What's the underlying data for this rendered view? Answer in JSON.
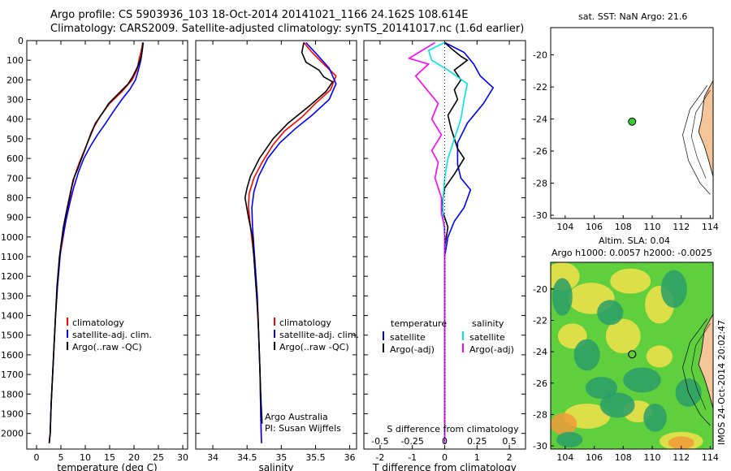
{
  "header": {
    "line1": "Argo profile: CS 5903936_103 18-Oct-2014 20141021_1166 24.162S 108.614E",
    "line2": "Climatology: CARS2009. Satellite-adjusted climatology: synTS_20141017.nc (1.6d earlier)"
  },
  "chart_data": [
    {
      "id": "temperature",
      "type": "line",
      "xlabel": "temperature (deg C)",
      "ylabel": "",
      "xlim": [
        -2,
        31
      ],
      "ylim": [
        2080,
        0
      ],
      "x_ticks": [
        0,
        5,
        10,
        15,
        20,
        25,
        30
      ],
      "y_ticks": [
        0,
        100,
        200,
        300,
        400,
        500,
        600,
        700,
        800,
        900,
        1000,
        1100,
        1200,
        1300,
        1400,
        1500,
        1600,
        1700,
        1800,
        1900,
        2000
      ],
      "legend": {
        "position": "lower-center",
        "entries": [
          "climatology",
          "satellite-adj. clim.",
          "Argo(..raw -QC)"
        ]
      },
      "series": [
        {
          "name": "climatology",
          "color": "#ff0000",
          "points": [
            [
              21.8,
              10
            ],
            [
              21.5,
              50
            ],
            [
              21,
              100
            ],
            [
              20.6,
              150
            ],
            [
              19.6,
              200
            ],
            [
              17.5,
              260
            ],
            [
              15,
              320
            ],
            [
              13.2,
              380
            ],
            [
              11.8,
              440
            ],
            [
              10.8,
              500
            ],
            [
              9.8,
              560
            ],
            [
              8.8,
              620
            ],
            [
              7.8,
              690
            ],
            [
              7.2,
              750
            ],
            [
              6.5,
              850
            ],
            [
              5.8,
              950
            ],
            [
              4.8,
              1100
            ],
            [
              4.3,
              1250
            ],
            [
              3.9,
              1400
            ],
            [
              3.6,
              1550
            ],
            [
              3.3,
              1700
            ],
            [
              3,
              1850
            ],
            [
              2.8,
              2000
            ],
            [
              2.6,
              2050
            ]
          ]
        },
        {
          "name": "satellite-adj. clim.",
          "color": "#0000ff",
          "points": [
            [
              21.9,
              10
            ],
            [
              21.7,
              50
            ],
            [
              21.4,
              100
            ],
            [
              20.9,
              150
            ],
            [
              20.3,
              200
            ],
            [
              19.1,
              250
            ],
            [
              17.5,
              300
            ],
            [
              15.8,
              360
            ],
            [
              14.2,
              420
            ],
            [
              12.5,
              480
            ],
            [
              11,
              540
            ],
            [
              9.7,
              600
            ],
            [
              8.6,
              670
            ],
            [
              7.6,
              750
            ],
            [
              6.9,
              820
            ],
            [
              6,
              920
            ],
            [
              5,
              1050
            ],
            [
              4.3,
              1250
            ],
            [
              3.9,
              1400
            ],
            [
              3.6,
              1550
            ],
            [
              3.3,
              1700
            ],
            [
              3,
              1850
            ],
            [
              2.8,
              2000
            ],
            [
              2.6,
              2050
            ]
          ]
        },
        {
          "name": "Argo(..raw -QC)",
          "color": "#000000",
          "points": [
            [
              21.8,
              10
            ],
            [
              21.7,
              40
            ],
            [
              21.5,
              80
            ],
            [
              20.8,
              130
            ],
            [
              19.8,
              180
            ],
            [
              18.8,
              220
            ],
            [
              16.8,
              270
            ],
            [
              14.8,
              320
            ],
            [
              13.5,
              370
            ],
            [
              12.1,
              420
            ],
            [
              11.2,
              470
            ],
            [
              10.3,
              530
            ],
            [
              9.4,
              590
            ],
            [
              8.5,
              650
            ],
            [
              7.5,
              710
            ],
            [
              6.9,
              780
            ],
            [
              6.3,
              850
            ],
            [
              5.5,
              950
            ],
            [
              4.7,
              1100
            ],
            [
              4.2,
              1250
            ],
            [
              3.9,
              1400
            ],
            [
              3.6,
              1550
            ],
            [
              3.3,
              1700
            ],
            [
              3,
              1850
            ],
            [
              2.8,
              2000
            ],
            [
              2.6,
              2050
            ]
          ]
        }
      ]
    },
    {
      "id": "salinity",
      "type": "line",
      "xlabel": "salinity",
      "xlim": [
        33.75,
        36.1
      ],
      "ylim": [
        2080,
        0
      ],
      "x_ticks": [
        34,
        34.5,
        35,
        35.5,
        36
      ],
      "x_tick_labels": [
        "34",
        "34.5",
        "35",
        "35.5",
        "36"
      ],
      "legend": {
        "position": "lower-center",
        "entries": [
          "climatology",
          "satellite-adj. clim.",
          "Argo(..raw -QC)"
        ]
      },
      "annotation": [
        "Argo Australia",
        "PI: Susan Wijffels"
      ],
      "series": [
        {
          "name": "climatology",
          "color": "#ff0000",
          "points": [
            [
              35.33,
              10
            ],
            [
              35.45,
              60
            ],
            [
              35.62,
              120
            ],
            [
              35.8,
              180
            ],
            [
              35.72,
              250
            ],
            [
              35.5,
              320
            ],
            [
              35.3,
              390
            ],
            [
              35.05,
              460
            ],
            [
              34.88,
              530
            ],
            [
              34.72,
              620
            ],
            [
              34.6,
              700
            ],
            [
              34.53,
              780
            ],
            [
              34.52,
              850
            ],
            [
              34.55,
              950
            ],
            [
              34.6,
              1100
            ],
            [
              34.64,
              1300
            ],
            [
              34.67,
              1500
            ],
            [
              34.69,
              1700
            ],
            [
              34.7,
              1900
            ],
            [
              34.71,
              2050
            ]
          ]
        },
        {
          "name": "satellite-adj. clim.",
          "color": "#0000ff",
          "points": [
            [
              35.36,
              10
            ],
            [
              35.52,
              70
            ],
            [
              35.7,
              140
            ],
            [
              35.8,
              220
            ],
            [
              35.7,
              300
            ],
            [
              35.45,
              380
            ],
            [
              35.2,
              450
            ],
            [
              34.98,
              520
            ],
            [
              34.8,
              600
            ],
            [
              34.67,
              690
            ],
            [
              34.6,
              770
            ],
            [
              34.57,
              850
            ],
            [
              34.58,
              950
            ],
            [
              34.61,
              1100
            ],
            [
              34.65,
              1300
            ],
            [
              34.67,
              1500
            ],
            [
              34.69,
              1700
            ],
            [
              34.7,
              1900
            ],
            [
              34.71,
              2050
            ]
          ]
        },
        {
          "name": "Argo(..raw -QC)",
          "color": "#000000",
          "points": [
            [
              35.33,
              10
            ],
            [
              35.3,
              60
            ],
            [
              35.36,
              110
            ],
            [
              35.55,
              150
            ],
            [
              35.62,
              185
            ],
            [
              35.75,
              210
            ],
            [
              35.65,
              260
            ],
            [
              35.42,
              330
            ],
            [
              35.1,
              420
            ],
            [
              34.88,
              500
            ],
            [
              34.68,
              600
            ],
            [
              34.55,
              690
            ],
            [
              34.5,
              750
            ],
            [
              34.47,
              800
            ],
            [
              34.52,
              900
            ],
            [
              34.58,
              1000
            ],
            [
              34.62,
              1200
            ],
            [
              34.66,
              1400
            ],
            [
              34.68,
              1600
            ],
            [
              34.7,
              1800
            ],
            [
              34.72,
              1950
            ]
          ]
        }
      ]
    },
    {
      "id": "difference",
      "type": "line",
      "xlabel": "T difference from climatology",
      "top_xlabel": "S difference from climatology",
      "xlim": [
        -2.5,
        2.5
      ],
      "ylim": [
        2080,
        0
      ],
      "x_ticks": [
        -2,
        -1,
        0,
        1,
        2
      ],
      "x_tick_labels": [
        "-2",
        "-1",
        "0",
        "1",
        "2"
      ],
      "top_ticks": [
        "-0.5",
        "-0.25",
        "0",
        "0.25",
        "0.5"
      ],
      "legend": {
        "position": "lower-center",
        "headers": [
          "temperature",
          "salinity"
        ],
        "entries": [
          "satellite",
          "Argo(-adj)",
          "satellite",
          "Argo(-adj)"
        ]
      },
      "series": [
        {
          "name": "satellite",
          "group": "temperature",
          "color": "#0000ff",
          "points": [
            [
              0,
              10
            ],
            [
              0.6,
              60
            ],
            [
              0.9,
              120
            ],
            [
              1.1,
              180
            ],
            [
              1.5,
              240
            ],
            [
              1.2,
              320
            ],
            [
              0.7,
              420
            ],
            [
              0.4,
              520
            ],
            [
              0.4,
              630
            ],
            [
              0.5,
              700
            ],
            [
              0.8,
              760
            ],
            [
              0.6,
              850
            ],
            [
              0.3,
              920
            ],
            [
              0.1,
              1000
            ],
            [
              0,
              1100
            ],
            [
              0,
              2050
            ]
          ]
        },
        {
          "name": "Argo(-adj)",
          "group": "temperature",
          "color": "#000000",
          "points": [
            [
              0,
              10
            ],
            [
              0.2,
              40
            ],
            [
              0.5,
              80
            ],
            [
              0.7,
              100
            ],
            [
              0.3,
              150
            ],
            [
              0.5,
              200
            ],
            [
              0.3,
              250
            ],
            [
              0.4,
              300
            ],
            [
              0.1,
              380
            ],
            [
              0.2,
              450
            ],
            [
              0.4,
              550
            ],
            [
              0.6,
              600
            ],
            [
              0.3,
              680
            ],
            [
              0,
              750
            ],
            [
              -0.1,
              850
            ],
            [
              0.1,
              950
            ],
            [
              0,
              1050
            ],
            [
              0,
              2050
            ]
          ]
        },
        {
          "name": "satellite",
          "group": "salinity",
          "color": "#00e5e5",
          "points": [
            [
              0,
              10
            ],
            [
              -0.5,
              50
            ],
            [
              -0.4,
              100
            ],
            [
              0.1,
              150
            ],
            [
              0.7,
              220
            ],
            [
              0.6,
              300
            ],
            [
              0.5,
              400
            ],
            [
              0.3,
              500
            ],
            [
              0.1,
              600
            ],
            [
              0,
              700
            ],
            [
              -0.05,
              800
            ],
            [
              -0.05,
              900
            ],
            [
              0,
              1000
            ],
            [
              0,
              2050
            ]
          ]
        },
        {
          "name": "Argo(-adj)",
          "group": "salinity",
          "color": "#ff00ff",
          "points": [
            [
              -0.3,
              10
            ],
            [
              -1.1,
              90
            ],
            [
              -0.5,
              120
            ],
            [
              -0.9,
              180
            ],
            [
              -0.6,
              240
            ],
            [
              -0.2,
              320
            ],
            [
              -0.4,
              400
            ],
            [
              -0.1,
              480
            ],
            [
              -0.4,
              560
            ],
            [
              -0.2,
              620
            ],
            [
              -0.3,
              700
            ],
            [
              -0.1,
              800
            ],
            [
              -0.1,
              880
            ],
            [
              0,
              950
            ],
            [
              0,
              2050
            ]
          ]
        }
      ]
    },
    {
      "id": "location-map",
      "type": "scatter",
      "title": "sat. SST: NaN Argo: 21.6",
      "xlim": [
        103,
        114.2
      ],
      "ylim": [
        -30.2,
        -18.3
      ],
      "x_ticks": [
        104,
        106,
        108,
        110,
        112,
        114
      ],
      "y_ticks": [
        -20,
        -22,
        -24,
        -26,
        -28,
        -30
      ],
      "marker": {
        "lon": 108.614,
        "lat": -24.162,
        "color": "#33cc33"
      },
      "land_color": "#f5c59a"
    },
    {
      "id": "sla-map",
      "type": "heatmap",
      "title_line1": "Altim. SLA: 0.04",
      "title_line2": "Argo h1000: 0.0057 h2000: -0.0025",
      "xlim": [
        103,
        114.2
      ],
      "ylim": [
        -30.2,
        -18.3
      ],
      "x_ticks": [
        104,
        106,
        108,
        110,
        112,
        114
      ],
      "y_ticks": [
        -20,
        -22,
        -24,
        -26,
        -28,
        -30
      ],
      "marker": {
        "lon": 108.614,
        "lat": -24.162
      },
      "side_label": "IMOS 24-Oct-2014 20:02:47",
      "colors": {
        "low": "#2a9d6a",
        "mid": "#5fcf3e",
        "high": "#f2e24a",
        "peak": "#f09a3a"
      }
    }
  ]
}
